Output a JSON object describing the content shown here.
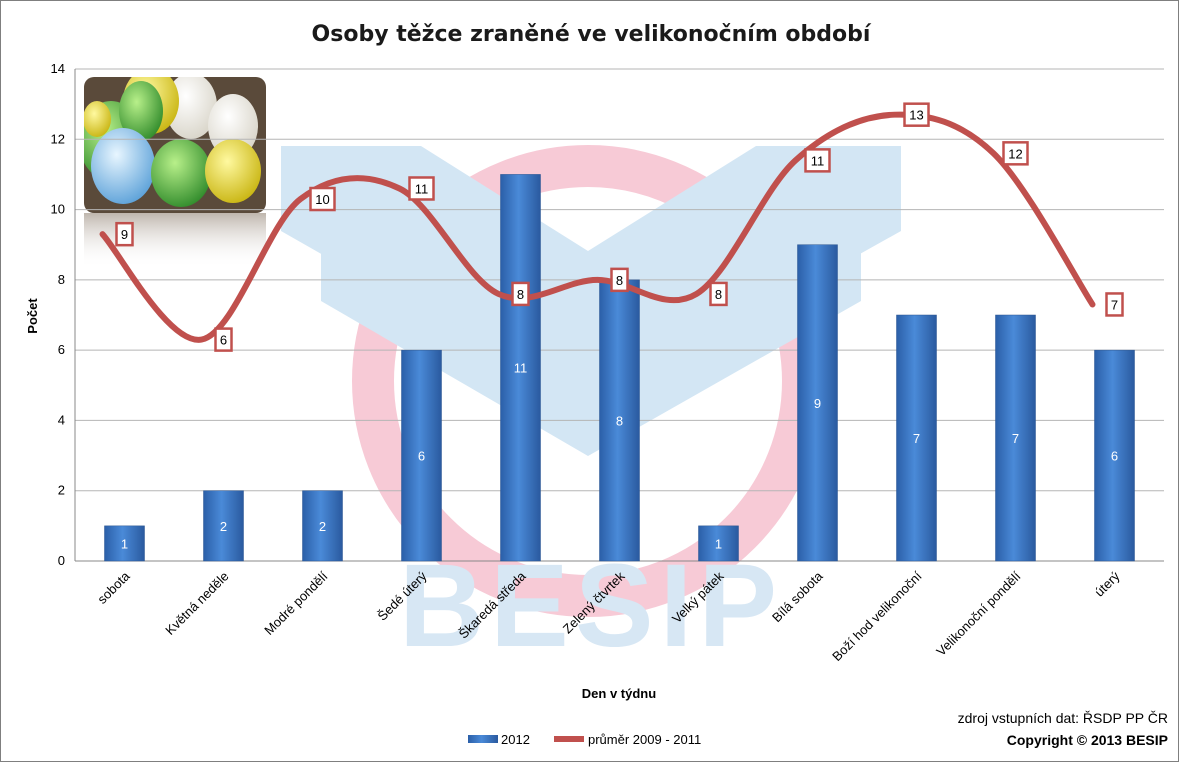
{
  "chart_data": {
    "type": "bar",
    "title": "Osoby těžce zraněné ve velikonočním období",
    "xlabel": "Den v týdnu",
    "ylabel": "Počet",
    "ylim": [
      0,
      14
    ],
    "yticks": [
      0,
      2,
      4,
      6,
      8,
      10,
      12,
      14
    ],
    "grid": true,
    "legend_position": "bottom",
    "categories": [
      "sobota",
      "Květná neděle",
      "Modré pondělí",
      "Šedé úterý",
      "Škaredá středa",
      "Zelený čtvrtek",
      "Velký pátek",
      "Bílá sobota",
      "Boží hod velikonoční",
      "Velikonoční pondělí",
      "úterý"
    ],
    "series": [
      {
        "name": "2012",
        "type": "bar",
        "color": "#3a78c8",
        "values": [
          1,
          2,
          2,
          6,
          11,
          8,
          1,
          9,
          7,
          7,
          6
        ]
      },
      {
        "name": "průměr 2009 - 2011",
        "type": "line",
        "color": "#c0504d",
        "values": [
          9.3,
          6.3,
          10.3,
          10.6,
          7.6,
          8.0,
          7.6,
          11.4,
          12.7,
          11.6,
          7.3
        ],
        "labels": [
          "9",
          "6",
          "10",
          "11",
          "8",
          "8",
          "8",
          "11",
          "13",
          "12",
          "7"
        ]
      }
    ]
  },
  "footer": {
    "source": "zdroj vstupních dat: ŘSDP PP ČR",
    "copyright": "Copyright © 2013 BESIP"
  },
  "watermark": {
    "text": "BESIP",
    "colors": [
      "#cfe3f2",
      "#f7cad6"
    ]
  },
  "decorative_image": "easter-eggs-photo-icon"
}
